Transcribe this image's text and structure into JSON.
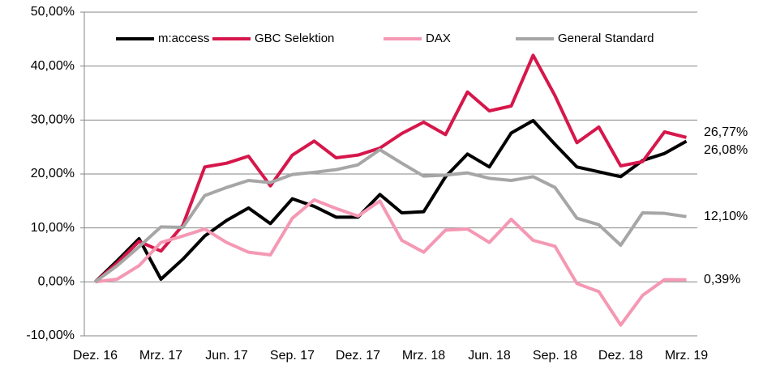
{
  "chart_data": {
    "type": "line",
    "categories": [
      "Dez. 16",
      null,
      null,
      "Mrz. 17",
      null,
      null,
      "Jun. 17",
      null,
      null,
      "Sep. 17",
      null,
      null,
      "Dez. 17",
      null,
      null,
      "Mrz. 18",
      null,
      null,
      "Jun. 18",
      null,
      null,
      "Sep. 18",
      null,
      null,
      "Dez. 18",
      null,
      null,
      "Mrz. 19"
    ],
    "series": [
      {
        "name": "m:access",
        "color": "#000000",
        "values": [
          0,
          3.9,
          8,
          0.5,
          4.2,
          8.5,
          11.4,
          13.7,
          10.8,
          15.4,
          14,
          12,
          12,
          16.2,
          12.8,
          13,
          19.5,
          23.7,
          21.3,
          27.6,
          29.9,
          25.5,
          21.3,
          20.4,
          19.5,
          22.5,
          23.8,
          26.08
        ],
        "value_labels": [
          null,
          null,
          null,
          null,
          null,
          null,
          null,
          null,
          null,
          null,
          null,
          null,
          null,
          null,
          null,
          null,
          null,
          null,
          null,
          null,
          null,
          null,
          null,
          null,
          null,
          null,
          null,
          "26,08%"
        ]
      },
      {
        "name": "GBC Selektion",
        "color": "#d6174b",
        "values": [
          0,
          3.5,
          7.5,
          5.7,
          10.5,
          21.3,
          22,
          23.3,
          17.8,
          23.5,
          26.1,
          23,
          23.5,
          24.8,
          27.5,
          29.6,
          27.3,
          35.2,
          31.7,
          32.6,
          42,
          34.5,
          25.8,
          28.7,
          21.5,
          22.3,
          27.8,
          26.77
        ],
        "value_labels": [
          null,
          null,
          null,
          null,
          null,
          null,
          null,
          null,
          null,
          null,
          null,
          null,
          null,
          null,
          null,
          null,
          null,
          null,
          null,
          null,
          null,
          null,
          null,
          null,
          null,
          null,
          null,
          "26,77%"
        ]
      },
      {
        "name": "DAX",
        "color": "#f598b4",
        "values": [
          0,
          0.5,
          3,
          7.3,
          8.5,
          9.8,
          7.3,
          5.5,
          5,
          11.8,
          15.2,
          13.6,
          12.2,
          15,
          7.7,
          5.5,
          9.6,
          9.8,
          7.3,
          11.6,
          7.7,
          6.6,
          -0.3,
          -1.8,
          -8,
          -2.5,
          0.4,
          0.39
        ],
        "value_labels": [
          null,
          null,
          null,
          null,
          null,
          null,
          null,
          null,
          null,
          null,
          null,
          null,
          null,
          null,
          null,
          null,
          null,
          null,
          null,
          null,
          null,
          null,
          null,
          null,
          null,
          null,
          null,
          "0,39%"
        ]
      },
      {
        "name": "General Standard",
        "color": "#a6a6a6",
        "values": [
          0,
          3,
          6.5,
          10.2,
          10.1,
          16,
          17.5,
          18.8,
          18.4,
          19.9,
          20.3,
          20.8,
          21.7,
          24.5,
          22,
          19.6,
          19.8,
          20.2,
          19.2,
          18.8,
          19.5,
          17.5,
          11.8,
          10.6,
          6.8,
          12.8,
          12.7,
          12.1
        ],
        "value_labels": [
          null,
          null,
          null,
          null,
          null,
          null,
          null,
          null,
          null,
          null,
          null,
          null,
          null,
          null,
          null,
          null,
          null,
          null,
          null,
          null,
          null,
          null,
          null,
          null,
          null,
          null,
          null,
          "12,10%"
        ]
      }
    ],
    "ylim": [
      -10,
      50
    ],
    "yticks": [
      {
        "value": -10,
        "label": "-10,00%"
      },
      {
        "value": 0,
        "label": "0,00%"
      },
      {
        "value": 10,
        "label": "10,00%"
      },
      {
        "value": 20,
        "label": "20,00%"
      },
      {
        "value": 30,
        "label": "30,00%"
      },
      {
        "value": 40,
        "label": "40,00%"
      },
      {
        "value": 50,
        "label": "50,00%"
      }
    ],
    "grid": true,
    "legend": "top"
  }
}
